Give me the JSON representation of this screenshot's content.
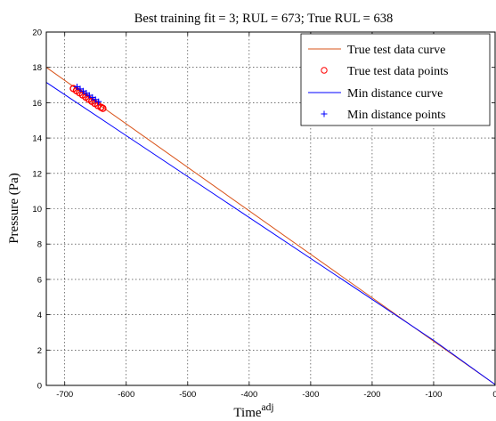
{
  "chart_data": {
    "type": "line",
    "title": "Best training fit = 3; RUL = 673; True RUL = 638",
    "xlabel": "Time",
    "xlabel_superscript": "adj",
    "ylabel": "Pressure (Pa)",
    "xlim": [
      -730,
      0
    ],
    "ylim": [
      0,
      20
    ],
    "xticks": [
      -700,
      -600,
      -500,
      -400,
      -300,
      -200,
      -100,
      0
    ],
    "xtick_labels": [
      "-700",
      "-600",
      "-500",
      "-400",
      "-300",
      "-200",
      "-100",
      "0"
    ],
    "yticks": [
      0,
      2,
      4,
      6,
      8,
      10,
      12,
      14,
      16,
      18,
      20
    ],
    "ytick_labels": [
      "0",
      "2",
      "4",
      "6",
      "8",
      "10",
      "12",
      "14",
      "16",
      "18",
      "20"
    ],
    "grid": true,
    "legend_position": "top-right",
    "series": [
      {
        "name": "True test data curve",
        "kind": "line",
        "color": "#d9541a",
        "x": [
          -730,
          -100,
          0
        ],
        "y": [
          18.0,
          2.5,
          0.05
        ]
      },
      {
        "name": "True test data points",
        "kind": "marker",
        "marker": "circle",
        "color": "#ff0000",
        "x": [
          -686,
          -681,
          -676,
          -671,
          -666,
          -661,
          -656,
          -651,
          -646,
          -641,
          -638
        ],
        "y": [
          16.8,
          16.68,
          16.56,
          16.44,
          16.32,
          16.2,
          16.08,
          15.96,
          15.84,
          15.74,
          15.68
        ]
      },
      {
        "name": "Min distance curve",
        "kind": "line",
        "color": "#0000ff",
        "x": [
          -730,
          -100,
          0
        ],
        "y": [
          17.15,
          2.55,
          0.05
        ]
      },
      {
        "name": "Min distance points",
        "kind": "marker",
        "marker": "plus",
        "color": "#0000ff",
        "x": [
          -680,
          -675,
          -670,
          -665,
          -660,
          -655,
          -650,
          -645
        ],
        "y": [
          16.9,
          16.78,
          16.66,
          16.54,
          16.42,
          16.3,
          16.18,
          16.06
        ]
      }
    ]
  }
}
